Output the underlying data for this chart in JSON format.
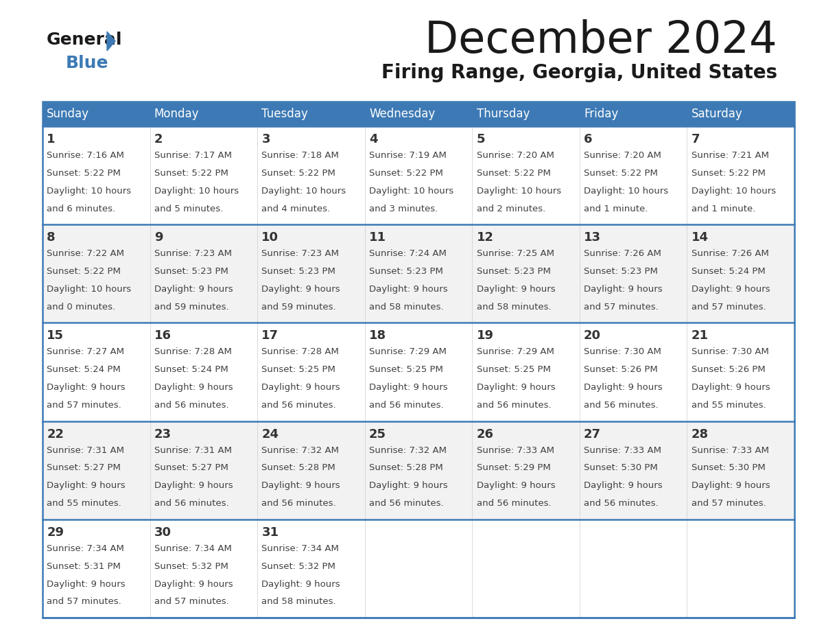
{
  "title": "December 2024",
  "subtitle": "Firing Range, Georgia, United States",
  "header_bg": "#3d7ab5",
  "header_text": "#ffffff",
  "days_of_week": [
    "Sunday",
    "Monday",
    "Tuesday",
    "Wednesday",
    "Thursday",
    "Friday",
    "Saturday"
  ],
  "row_bg_even": "#ffffff",
  "row_bg_odd": "#f2f2f2",
  "border_color": "#3d7ab5",
  "text_color": "#404040",
  "calendar": [
    [
      {
        "day": 1,
        "sunrise": "7:16 AM",
        "sunset": "5:22 PM",
        "daylight_h": "10 hours",
        "daylight_m": "and 6 minutes."
      },
      {
        "day": 2,
        "sunrise": "7:17 AM",
        "sunset": "5:22 PM",
        "daylight_h": "10 hours",
        "daylight_m": "and 5 minutes."
      },
      {
        "day": 3,
        "sunrise": "7:18 AM",
        "sunset": "5:22 PM",
        "daylight_h": "10 hours",
        "daylight_m": "and 4 minutes."
      },
      {
        "day": 4,
        "sunrise": "7:19 AM",
        "sunset": "5:22 PM",
        "daylight_h": "10 hours",
        "daylight_m": "and 3 minutes."
      },
      {
        "day": 5,
        "sunrise": "7:20 AM",
        "sunset": "5:22 PM",
        "daylight_h": "10 hours",
        "daylight_m": "and 2 minutes."
      },
      {
        "day": 6,
        "sunrise": "7:20 AM",
        "sunset": "5:22 PM",
        "daylight_h": "10 hours",
        "daylight_m": "and 1 minute."
      },
      {
        "day": 7,
        "sunrise": "7:21 AM",
        "sunset": "5:22 PM",
        "daylight_h": "10 hours",
        "daylight_m": "and 1 minute."
      }
    ],
    [
      {
        "day": 8,
        "sunrise": "7:22 AM",
        "sunset": "5:22 PM",
        "daylight_h": "10 hours",
        "daylight_m": "and 0 minutes."
      },
      {
        "day": 9,
        "sunrise": "7:23 AM",
        "sunset": "5:23 PM",
        "daylight_h": "9 hours",
        "daylight_m": "and 59 minutes."
      },
      {
        "day": 10,
        "sunrise": "7:23 AM",
        "sunset": "5:23 PM",
        "daylight_h": "9 hours",
        "daylight_m": "and 59 minutes."
      },
      {
        "day": 11,
        "sunrise": "7:24 AM",
        "sunset": "5:23 PM",
        "daylight_h": "9 hours",
        "daylight_m": "and 58 minutes."
      },
      {
        "day": 12,
        "sunrise": "7:25 AM",
        "sunset": "5:23 PM",
        "daylight_h": "9 hours",
        "daylight_m": "and 58 minutes."
      },
      {
        "day": 13,
        "sunrise": "7:26 AM",
        "sunset": "5:23 PM",
        "daylight_h": "9 hours",
        "daylight_m": "and 57 minutes."
      },
      {
        "day": 14,
        "sunrise": "7:26 AM",
        "sunset": "5:24 PM",
        "daylight_h": "9 hours",
        "daylight_m": "and 57 minutes."
      }
    ],
    [
      {
        "day": 15,
        "sunrise": "7:27 AM",
        "sunset": "5:24 PM",
        "daylight_h": "9 hours",
        "daylight_m": "and 57 minutes."
      },
      {
        "day": 16,
        "sunrise": "7:28 AM",
        "sunset": "5:24 PM",
        "daylight_h": "9 hours",
        "daylight_m": "and 56 minutes."
      },
      {
        "day": 17,
        "sunrise": "7:28 AM",
        "sunset": "5:25 PM",
        "daylight_h": "9 hours",
        "daylight_m": "and 56 minutes."
      },
      {
        "day": 18,
        "sunrise": "7:29 AM",
        "sunset": "5:25 PM",
        "daylight_h": "9 hours",
        "daylight_m": "and 56 minutes."
      },
      {
        "day": 19,
        "sunrise": "7:29 AM",
        "sunset": "5:25 PM",
        "daylight_h": "9 hours",
        "daylight_m": "and 56 minutes."
      },
      {
        "day": 20,
        "sunrise": "7:30 AM",
        "sunset": "5:26 PM",
        "daylight_h": "9 hours",
        "daylight_m": "and 56 minutes."
      },
      {
        "day": 21,
        "sunrise": "7:30 AM",
        "sunset": "5:26 PM",
        "daylight_h": "9 hours",
        "daylight_m": "and 55 minutes."
      }
    ],
    [
      {
        "day": 22,
        "sunrise": "7:31 AM",
        "sunset": "5:27 PM",
        "daylight_h": "9 hours",
        "daylight_m": "and 55 minutes."
      },
      {
        "day": 23,
        "sunrise": "7:31 AM",
        "sunset": "5:27 PM",
        "daylight_h": "9 hours",
        "daylight_m": "and 56 minutes."
      },
      {
        "day": 24,
        "sunrise": "7:32 AM",
        "sunset": "5:28 PM",
        "daylight_h": "9 hours",
        "daylight_m": "and 56 minutes."
      },
      {
        "day": 25,
        "sunrise": "7:32 AM",
        "sunset": "5:28 PM",
        "daylight_h": "9 hours",
        "daylight_m": "and 56 minutes."
      },
      {
        "day": 26,
        "sunrise": "7:33 AM",
        "sunset": "5:29 PM",
        "daylight_h": "9 hours",
        "daylight_m": "and 56 minutes."
      },
      {
        "day": 27,
        "sunrise": "7:33 AM",
        "sunset": "5:30 PM",
        "daylight_h": "9 hours",
        "daylight_m": "and 56 minutes."
      },
      {
        "day": 28,
        "sunrise": "7:33 AM",
        "sunset": "5:30 PM",
        "daylight_h": "9 hours",
        "daylight_m": "and 57 minutes."
      }
    ],
    [
      {
        "day": 29,
        "sunrise": "7:34 AM",
        "sunset": "5:31 PM",
        "daylight_h": "9 hours",
        "daylight_m": "and 57 minutes."
      },
      {
        "day": 30,
        "sunrise": "7:34 AM",
        "sunset": "5:32 PM",
        "daylight_h": "9 hours",
        "daylight_m": "and 57 minutes."
      },
      {
        "day": 31,
        "sunrise": "7:34 AM",
        "sunset": "5:32 PM",
        "daylight_h": "9 hours",
        "daylight_m": "and 58 minutes."
      },
      null,
      null,
      null,
      null
    ]
  ]
}
